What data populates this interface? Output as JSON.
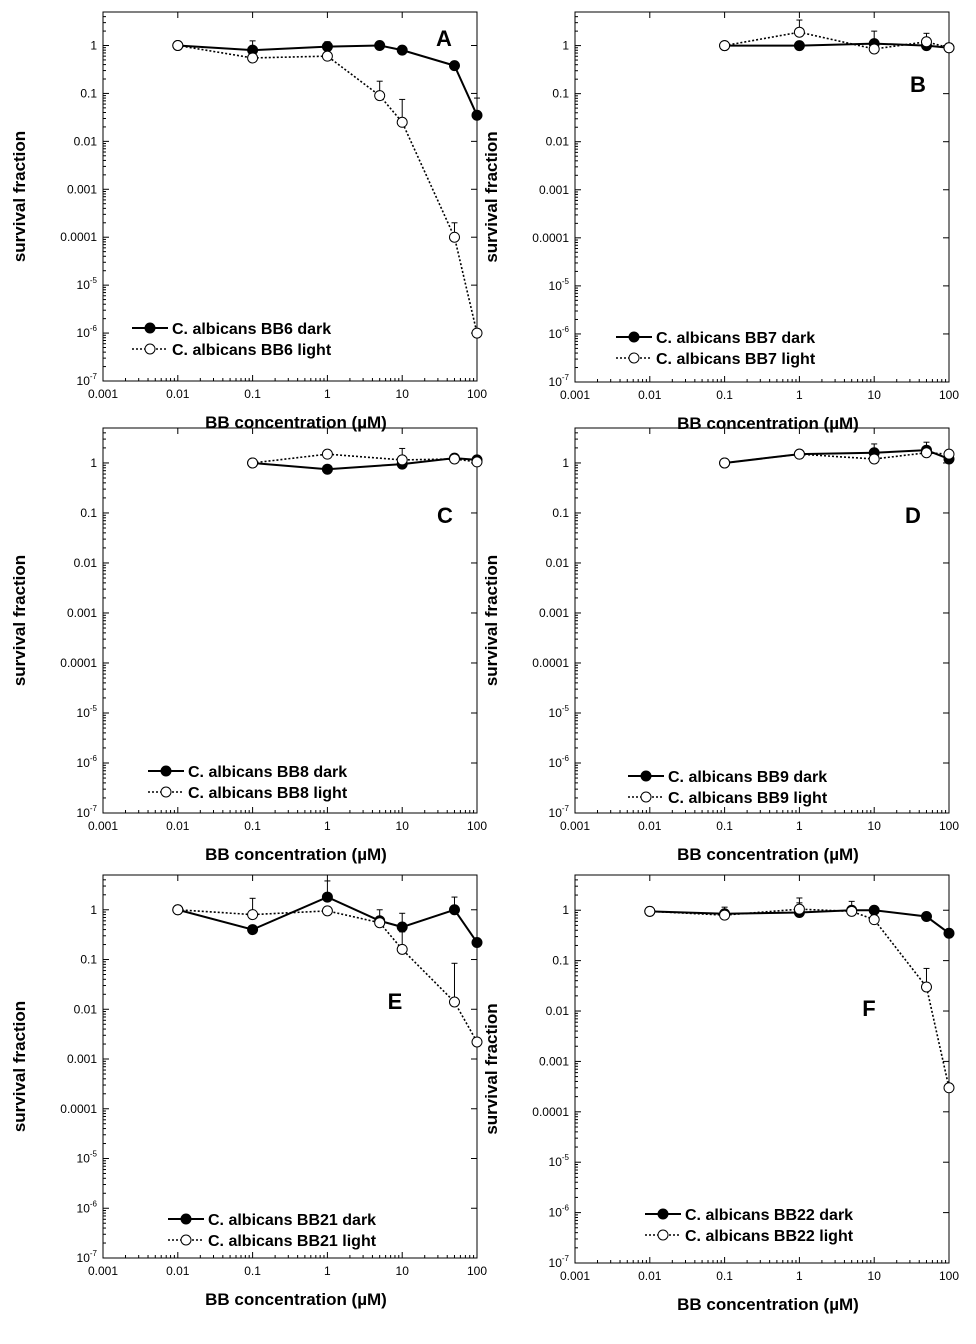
{
  "figure": {
    "colors": {
      "dark": "#000000",
      "light": "#000000",
      "axis": "#000000"
    },
    "axis_common": {
      "xlabel": "BB concentration (µM)",
      "ylabel": "survival fraction",
      "x_scale": "log",
      "y_scale": "log",
      "xlim": [
        0.001,
        100
      ],
      "ylim": [
        1e-07,
        5
      ],
      "x_tick_labels": [
        "0.001",
        "0.01",
        "0.1",
        "1",
        "10",
        "100"
      ],
      "y_tick_labels": [
        {
          "base": "10",
          "exp": "-7"
        },
        {
          "base": "10",
          "exp": "-6"
        },
        {
          "base": "10",
          "exp": "-5"
        },
        {
          "base": "0.0001",
          "exp": ""
        },
        {
          "base": "0.001",
          "exp": ""
        },
        {
          "base": "0.01",
          "exp": ""
        },
        {
          "base": "0.1",
          "exp": ""
        },
        {
          "base": "1",
          "exp": ""
        }
      ]
    }
  },
  "chart_data": [
    {
      "type": "scatter",
      "panel": "A",
      "legend_position": "bottom-left",
      "series": [
        {
          "name": "C. albicans BB6 dark",
          "marker": "filled-circle",
          "line": "solid",
          "x": [
            0.01,
            0.1,
            1,
            5,
            10,
            50,
            100
          ],
          "y": [
            1,
            0.8,
            0.95,
            1,
            0.8,
            0.38,
            0.035
          ],
          "err": [
            null,
            0.45,
            0.25,
            0.15,
            null,
            null,
            0.045
          ]
        },
        {
          "name": "C. albicans BB6 light",
          "marker": "open-circle",
          "line": "dashed",
          "x": [
            0.01,
            0.1,
            1,
            5,
            10,
            50,
            100
          ],
          "y": [
            1,
            0.55,
            0.6,
            0.09,
            0.025,
            0.0001,
            1e-06
          ],
          "err": [
            null,
            null,
            null,
            0.09,
            0.05,
            0.0001,
            null
          ]
        }
      ]
    },
    {
      "type": "scatter",
      "panel": "B",
      "legend_position": "bottom-left",
      "series": [
        {
          "name": "C. albicans BB7 dark",
          "marker": "filled-circle",
          "line": "solid",
          "x": [
            0.1,
            1,
            10,
            50,
            100
          ],
          "y": [
            1,
            1,
            1.1,
            1,
            0.9
          ],
          "err": [
            null,
            null,
            0.9,
            null,
            null
          ]
        },
        {
          "name": "C. albicans BB7 light",
          "marker": "open-circle",
          "line": "dashed",
          "x": [
            0.1,
            1,
            10,
            50,
            100
          ],
          "y": [
            1,
            1.9,
            0.85,
            1.2,
            0.9
          ],
          "err": [
            null,
            1.5,
            null,
            0.6,
            null
          ]
        }
      ]
    },
    {
      "type": "scatter",
      "panel": "C",
      "legend_position": "bottom-left",
      "series": [
        {
          "name": "C. albicans BB8 dark",
          "marker": "filled-circle",
          "line": "solid",
          "x": [
            0.1,
            1,
            10,
            50,
            100
          ],
          "y": [
            1,
            0.75,
            0.95,
            1.25,
            1.15
          ],
          "err": [
            null,
            null,
            null,
            0.2,
            null
          ]
        },
        {
          "name": "C. albicans BB8 light",
          "marker": "open-circle",
          "line": "dashed",
          "x": [
            0.1,
            1,
            10,
            50,
            100
          ],
          "y": [
            1,
            1.5,
            1.15,
            1.2,
            1.05
          ],
          "err": [
            null,
            null,
            0.8,
            null,
            null
          ]
        }
      ]
    },
    {
      "type": "scatter",
      "panel": "D",
      "legend_position": "bottom-left",
      "series": [
        {
          "name": "C. albicans BB9 dark",
          "marker": "filled-circle",
          "line": "solid",
          "x": [
            0.1,
            1,
            10,
            50,
            100
          ],
          "y": [
            1,
            1.5,
            1.6,
            1.8,
            1.2
          ],
          "err": [
            null,
            null,
            0.8,
            0.8,
            null
          ]
        },
        {
          "name": "C. albicans BB9 light",
          "marker": "open-circle",
          "line": "dashed",
          "x": [
            0.1,
            1,
            10,
            50,
            100
          ],
          "y": [
            1,
            1.5,
            1.2,
            1.6,
            1.5
          ],
          "err": [
            null,
            null,
            null,
            null,
            null
          ]
        }
      ]
    },
    {
      "type": "scatter",
      "panel": "E",
      "legend_position": "bottom-left",
      "series": [
        {
          "name": "C. albicans BB21 dark",
          "marker": "filled-circle",
          "line": "solid",
          "x": [
            0.01,
            0.1,
            1,
            5,
            10,
            50,
            100
          ],
          "y": [
            1,
            0.4,
            1.8,
            0.6,
            0.45,
            1,
            0.22
          ],
          "err": [
            null,
            null,
            2,
            0.4,
            0.4,
            0.8,
            null
          ]
        },
        {
          "name": "C. albicans BB21 light",
          "marker": "open-circle",
          "line": "dashed",
          "x": [
            0.01,
            0.1,
            1,
            5,
            10,
            50,
            100
          ],
          "y": [
            1,
            0.8,
            0.95,
            0.55,
            0.16,
            0.014,
            0.0022
          ],
          "err": [
            null,
            0.9,
            null,
            null,
            0.2,
            0.07,
            null
          ]
        }
      ]
    },
    {
      "type": "scatter",
      "panel": "F",
      "legend_position": "bottom-left",
      "series": [
        {
          "name": "C. albicans BB22 dark",
          "marker": "filled-circle",
          "line": "solid",
          "x": [
            0.01,
            0.1,
            1,
            5,
            10,
            50,
            100
          ],
          "y": [
            0.95,
            0.85,
            0.9,
            1,
            1,
            0.75,
            0.35
          ],
          "err": [
            null,
            0.3,
            0.5,
            0.5,
            null,
            null,
            null
          ]
        },
        {
          "name": "C. albicans BB22 light",
          "marker": "open-circle",
          "line": "dashed",
          "x": [
            0.01,
            0.1,
            1,
            5,
            10,
            50,
            100
          ],
          "y": [
            0.95,
            0.8,
            1.05,
            0.95,
            0.65,
            0.03,
            0.0003
          ],
          "err": [
            null,
            null,
            0.7,
            null,
            null,
            0.04,
            null
          ]
        }
      ]
    }
  ]
}
